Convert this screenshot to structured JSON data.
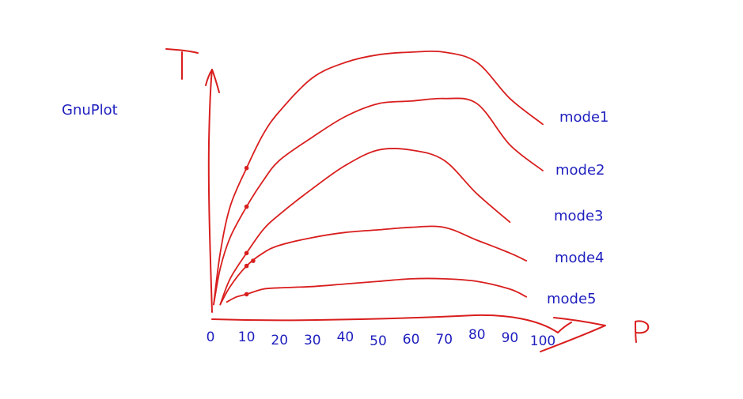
{
  "colors": {
    "ink": "#d91e1e",
    "label": "#1f1fbf",
    "background": "#ffffff"
  },
  "chart_data": {
    "type": "line",
    "title": "GnuPlot",
    "xlabel": "P",
    "ylabel": "T",
    "xlim": [
      0,
      100
    ],
    "ylim": [
      0,
      100
    ],
    "grid": false,
    "legend": "inline-right",
    "x_ticks": [
      "0",
      "10",
      "20",
      "30",
      "40",
      "50",
      "60",
      "70",
      "80",
      "90",
      "100"
    ],
    "series": [
      {
        "name": "mode1",
        "x": [
          0,
          2,
          5,
          10,
          15,
          20,
          30,
          40,
          50,
          60,
          70,
          80,
          90,
          100
        ],
        "y": [
          2,
          22,
          40,
          55,
          68,
          77,
          90,
          96,
          99,
          100,
          100,
          96,
          82,
          72
        ],
        "marker_x": [
          10
        ]
      },
      {
        "name": "mode2",
        "x": [
          0,
          2,
          5,
          10,
          15,
          20,
          30,
          40,
          50,
          60,
          70,
          80,
          90,
          100
        ],
        "y": [
          2,
          16,
          28,
          40,
          50,
          58,
          67,
          75,
          80,
          81,
          82,
          80,
          64,
          54
        ],
        "marker_x": [
          10
        ]
      },
      {
        "name": "mode3",
        "x": [
          2,
          5,
          10,
          15,
          20,
          30,
          40,
          50,
          60,
          70,
          80,
          90
        ],
        "y": [
          2,
          12,
          22,
          31,
          37,
          47,
          56,
          62,
          62,
          58,
          45,
          34
        ],
        "marker_x": [
          10
        ]
      },
      {
        "name": "mode4",
        "x": [
          2,
          5,
          10,
          15,
          20,
          30,
          40,
          50,
          60,
          70,
          80,
          90,
          95
        ],
        "y": [
          2,
          9,
          17,
          22,
          25,
          28,
          30,
          31,
          32,
          32,
          27,
          22,
          19
        ],
        "marker_x": [
          10,
          12
        ]
      },
      {
        "name": "mode5",
        "x": [
          4,
          7,
          10,
          15,
          20,
          30,
          40,
          50,
          60,
          70,
          80,
          90,
          95
        ],
        "y": [
          3,
          5,
          6,
          8,
          8.5,
          9,
          10,
          11,
          12,
          12,
          11,
          8,
          5
        ],
        "marker_x": [
          10
        ]
      }
    ]
  }
}
